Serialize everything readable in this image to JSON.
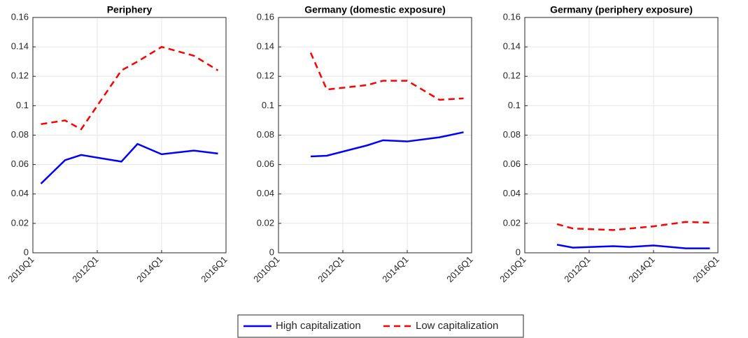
{
  "chart_data": [
    {
      "type": "line",
      "title": "Periphery",
      "x": [
        "2010Q2",
        "2011Q1",
        "2011Q3",
        "2012Q4",
        "2013Q2",
        "2014Q1",
        "2015Q1",
        "2015Q4"
      ],
      "series": [
        {
          "name": "High capitalization",
          "color": "#0000ff",
          "linestyle": "solid",
          "values": [
            0.047,
            0.063,
            0.0665,
            0.062,
            0.074,
            0.067,
            0.0695,
            0.0675
          ]
        },
        {
          "name": "Low capitalization",
          "color": "#ff0000",
          "linestyle": "dashed",
          "values": [
            0.0875,
            0.09,
            0.084,
            0.124,
            0.13,
            0.14,
            0.134,
            0.124
          ]
        }
      ],
      "xlim": [
        "2010Q1",
        "2016Q1"
      ],
      "xticks": [
        "2010Q1",
        "2012Q1",
        "2014Q1",
        "2016Q1"
      ],
      "ylim": [
        0,
        0.16
      ],
      "yticks": [
        0,
        0.02,
        0.04,
        0.06,
        0.08,
        0.1,
        0.12,
        0.14,
        0.16
      ],
      "grid": true
    },
    {
      "type": "line",
      "title": "Germany (domestic exposure)",
      "x": [
        "2011Q1",
        "2011Q3",
        "2012Q4",
        "2013Q2",
        "2014Q1",
        "2015Q1",
        "2015Q4"
      ],
      "series": [
        {
          "name": "High capitalization",
          "color": "#0000ff",
          "linestyle": "solid",
          "values": [
            0.0655,
            0.066,
            0.073,
            0.0765,
            0.0757,
            0.0785,
            0.082
          ]
        },
        {
          "name": "Low capitalization",
          "color": "#ff0000",
          "linestyle": "dashed",
          "values": [
            0.136,
            0.111,
            0.114,
            0.117,
            0.117,
            0.104,
            0.105
          ]
        }
      ],
      "xlim": [
        "2010Q1",
        "2016Q1"
      ],
      "xticks": [
        "2010Q1",
        "2012Q1",
        "2014Q1",
        "2016Q1"
      ],
      "ylim": [
        0,
        0.16
      ],
      "yticks": [
        0,
        0.02,
        0.04,
        0.06,
        0.08,
        0.1,
        0.12,
        0.14,
        0.16
      ],
      "grid": true
    },
    {
      "type": "line",
      "title": "Germany (periphery exposure)",
      "x": [
        "2011Q1",
        "2011Q3",
        "2012Q4",
        "2013Q2",
        "2014Q1",
        "2015Q1",
        "2015Q4"
      ],
      "series": [
        {
          "name": "High capitalization",
          "color": "#0000ff",
          "linestyle": "solid",
          "values": [
            0.0055,
            0.0035,
            0.0045,
            0.004,
            0.005,
            0.003,
            0.003
          ]
        },
        {
          "name": "Low capitalization",
          "color": "#ff0000",
          "linestyle": "dashed",
          "values": [
            0.0195,
            0.0165,
            0.0155,
            0.0165,
            0.018,
            0.021,
            0.0205
          ]
        }
      ],
      "xlim": [
        "2010Q1",
        "2016Q1"
      ],
      "xticks": [
        "2010Q1",
        "2012Q1",
        "2014Q1",
        "2016Q1"
      ],
      "ylim": [
        0,
        0.16
      ],
      "yticks": [
        0,
        0.02,
        0.04,
        0.06,
        0.08,
        0.1,
        0.12,
        0.14,
        0.16
      ],
      "grid": true
    }
  ]
}
